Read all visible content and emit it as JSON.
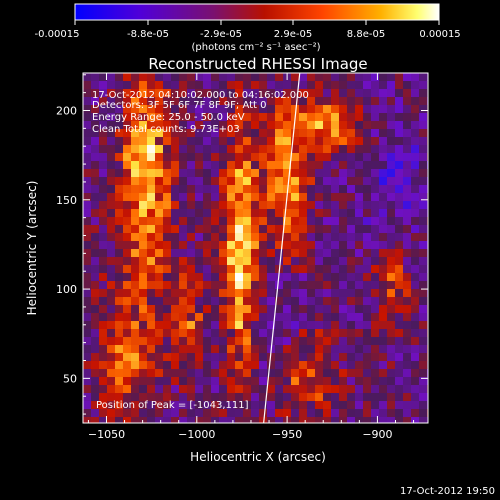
{
  "colorbar": {
    "tick_labels": [
      "-0.00015",
      "-8.8e-05",
      "-2.9e-05",
      "2.9e-05",
      "8.8e-05",
      "0.00015"
    ],
    "unit_label": "(photons cm⁻² s⁻¹ asec⁻²)",
    "range": [
      -0.00015,
      0.00015
    ]
  },
  "chart_data": {
    "type": "heatmap",
    "title": "Reconstructed RHESSI Image",
    "xlabel": "Heliocentric X (arcsec)",
    "ylabel": "Heliocentric Y (arcsec)",
    "xlim": [
      -1063,
      -872
    ],
    "ylim": [
      25,
      221
    ],
    "x_ticks": [
      -1050,
      -1000,
      -950,
      -900
    ],
    "y_ticks": [
      50,
      100,
      150,
      200
    ],
    "annotations": [
      "17-Oct-2012 04:10:02.000 to 04:16:02.000",
      "Detectors: 3F 5F 6F 7F 8F 9F; Att 0",
      "Energy Range: 25.0 - 50.0 keV",
      "Clean     Total counts: 9.73E+03"
    ],
    "peak_text": "Position of Peak = [-1043,111]",
    "limb_line": [
      [
        -963,
        25
      ],
      [
        -943,
        221
      ]
    ],
    "colormap": [
      "#1010ff",
      "#7010c0",
      "#4a1a5a",
      "#c81400",
      "#ff6a00",
      "#ffe040",
      "#ffffff"
    ]
  },
  "footer": {
    "timestamp": "17-Oct-2012 19:50"
  }
}
